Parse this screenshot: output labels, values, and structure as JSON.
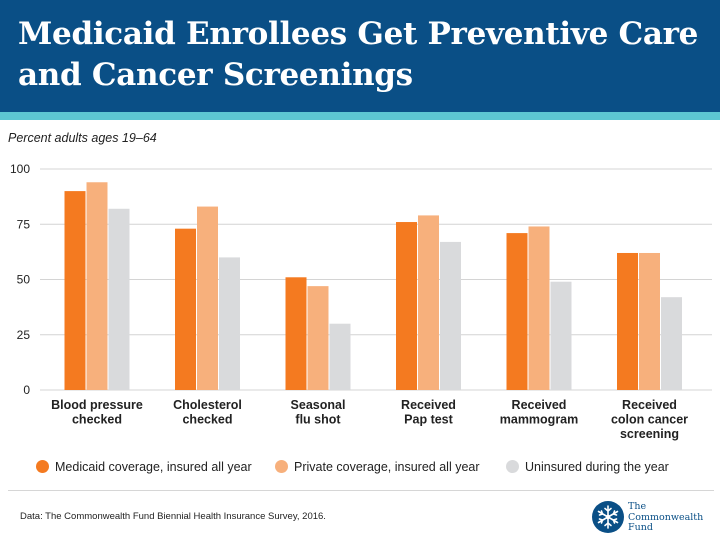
{
  "header": {
    "title": "Medicaid Enrollees Get Preventive Care and Cancer Screenings"
  },
  "subtitle": "Percent adults ages 19–64",
  "colors": {
    "header_bg": "#0a4f86",
    "accent": "#5dc6d2",
    "medicaid": "#f47a20",
    "private": "#f7b07c",
    "uninsured": "#d9dadc"
  },
  "chart_data": {
    "type": "bar",
    "ylim": [
      0,
      100
    ],
    "yticks": [
      "0",
      "25",
      "50",
      "75",
      "100"
    ],
    "categories": [
      [
        "Blood pressure",
        "checked"
      ],
      [
        "Cholesterol",
        "checked"
      ],
      [
        "Seasonal",
        "flu shot"
      ],
      [
        "Received",
        "Pap test"
      ],
      [
        "Received",
        "mammogram"
      ],
      [
        "Received",
        "colon cancer",
        "screening"
      ]
    ],
    "series": [
      {
        "name": "Medicaid coverage, insured all year",
        "color": "#f47a20",
        "values": [
          90,
          73,
          51,
          76,
          71,
          62
        ]
      },
      {
        "name": "Private coverage, insured all year",
        "color": "#f7b07c",
        "values": [
          94,
          83,
          47,
          79,
          74,
          62
        ]
      },
      {
        "name": "Uninsured during the year",
        "color": "#d9dadc",
        "values": [
          82,
          60,
          30,
          67,
          49,
          42
        ]
      }
    ],
    "grid": true,
    "legend": "bottom"
  },
  "source": "Data: The Commonwealth Fund Biennial Health Insurance Survey, 2016.",
  "logo": {
    "icon": "snowflake-emblem-icon",
    "lines": [
      "The",
      "Commonwealth",
      "Fund"
    ]
  }
}
